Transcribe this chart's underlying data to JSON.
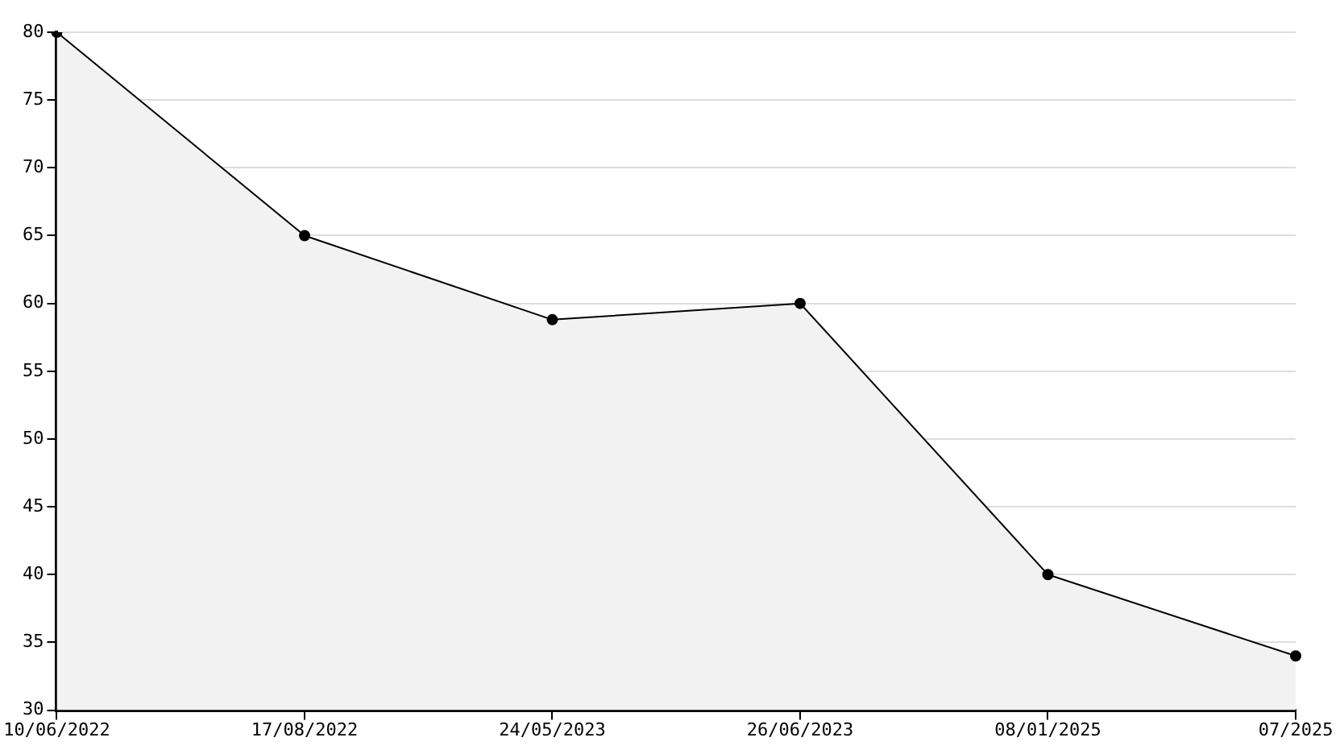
{
  "chart_data": {
    "type": "area",
    "categories": [
      "10/06/2022",
      "17/08/2022",
      "24/05/2023",
      "26/06/2023",
      "08/01/2025",
      "07/2025"
    ],
    "series": [
      {
        "color": "#000000",
        "values": [
          80,
          65,
          58.8,
          60,
          40,
          34
        ]
      }
    ],
    "ylim": [
      30,
      80
    ],
    "yticks": [
      30,
      35,
      40,
      45,
      50,
      55,
      60,
      65,
      70,
      75,
      80
    ],
    "grid": "y",
    "legend": false,
    "marker": "circle",
    "line_style": "solid"
  }
}
